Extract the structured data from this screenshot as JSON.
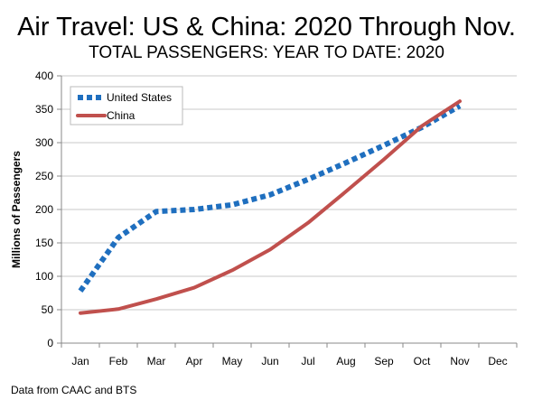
{
  "header": {
    "title": "Air Travel: US & China: 2020 Through Nov.",
    "subtitle": "TOTAL PASSENGERS: YEAR TO DATE: 2020"
  },
  "footer": {
    "source": "Data from CAAC and BTS"
  },
  "chart_data": {
    "type": "line",
    "title": "Air Travel: US & China: 2020 Through Nov.",
    "subtitle": "TOTAL PASSENGERS: YEAR TO DATE: 2020",
    "xlabel": "",
    "ylabel": "Millions of Passengers",
    "ylim": [
      0,
      400
    ],
    "yticks": [
      0,
      50,
      100,
      150,
      200,
      250,
      300,
      350,
      400
    ],
    "categories": [
      "Jan",
      "Feb",
      "Mar",
      "Apr",
      "May",
      "Jun",
      "Jul",
      "Aug",
      "Sep",
      "Oct",
      "Nov",
      "Dec"
    ],
    "grid": "horizontal",
    "legend_position": "top-left",
    "series": [
      {
        "name": "United States",
        "color": "#1f6fbf",
        "style": "dotted",
        "values": [
          78,
          158,
          197,
          200,
          207,
          222,
          245,
          270,
          296,
          323,
          355,
          null
        ]
      },
      {
        "name": "China",
        "color": "#c0504d",
        "style": "solid",
        "values": [
          45,
          51,
          66,
          83,
          109,
          140,
          180,
          227,
          275,
          325,
          362,
          null
        ]
      }
    ]
  }
}
